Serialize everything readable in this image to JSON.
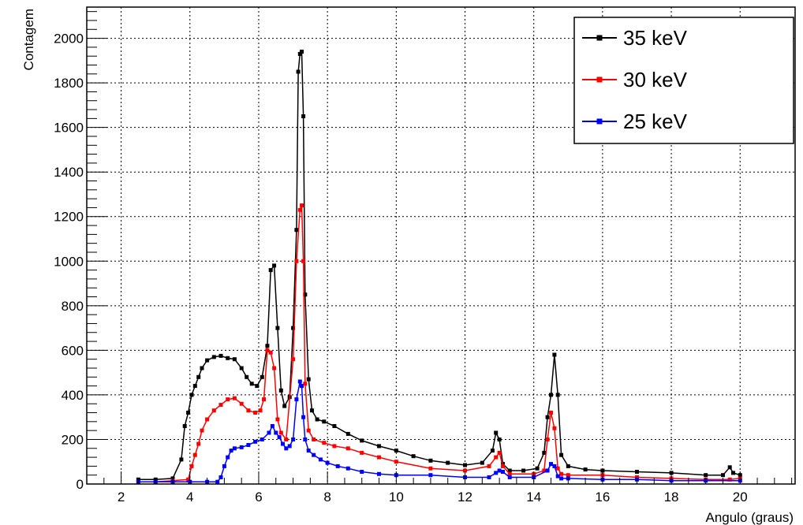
{
  "chart_data": {
    "type": "line",
    "xlabel": "Angulo (graus)",
    "ylabel": "Contagem",
    "xlim": [
      1,
      21.6
    ],
    "ylim": [
      0,
      2140
    ],
    "xticks": [
      2,
      4,
      6,
      8,
      10,
      12,
      14,
      16,
      18,
      20
    ],
    "yticks": [
      0,
      200,
      400,
      600,
      800,
      1000,
      1200,
      1400,
      1600,
      1800,
      2000
    ],
    "grid": true,
    "legend": "top-right",
    "series": [
      {
        "name": "35 keV",
        "color": "#000000",
        "x": [
          2.5,
          3.0,
          3.5,
          3.75,
          3.85,
          3.95,
          4.05,
          4.15,
          4.25,
          4.35,
          4.5,
          4.7,
          4.9,
          5.1,
          5.3,
          5.5,
          5.65,
          5.8,
          5.95,
          6.1,
          6.25,
          6.35,
          6.45,
          6.55,
          6.65,
          6.75,
          6.9,
          7.0,
          7.1,
          7.15,
          7.2,
          7.25,
          7.3,
          7.35,
          7.45,
          7.55,
          7.7,
          7.9,
          8.2,
          8.6,
          9.0,
          9.5,
          10.0,
          10.5,
          11.0,
          11.5,
          12.0,
          12.5,
          12.8,
          12.9,
          13.0,
          13.1,
          13.3,
          13.7,
          14.1,
          14.3,
          14.4,
          14.5,
          14.6,
          14.7,
          14.8,
          15.0,
          15.5,
          16.0,
          17.0,
          18.0,
          19.0,
          19.5,
          19.7,
          19.8,
          20.0
        ],
        "values": [
          20,
          20,
          25,
          110,
          260,
          320,
          400,
          440,
          480,
          520,
          555,
          570,
          575,
          565,
          560,
          520,
          480,
          450,
          440,
          480,
          620,
          960,
          980,
          700,
          420,
          350,
          390,
          700,
          1140,
          1850,
          1930,
          1940,
          1650,
          850,
          470,
          330,
          290,
          280,
          260,
          225,
          195,
          170,
          150,
          125,
          105,
          95,
          85,
          95,
          150,
          230,
          200,
          90,
          60,
          60,
          70,
          140,
          300,
          400,
          580,
          400,
          130,
          80,
          65,
          60,
          55,
          50,
          40,
          40,
          75,
          50,
          40
        ]
      },
      {
        "name": "30 keV",
        "color": "#ff0000",
        "x": [
          2.5,
          3.0,
          3.5,
          3.95,
          4.05,
          4.15,
          4.25,
          4.35,
          4.5,
          4.7,
          4.9,
          5.1,
          5.3,
          5.5,
          5.7,
          5.9,
          6.05,
          6.15,
          6.25,
          6.35,
          6.45,
          6.55,
          6.65,
          6.8,
          7.0,
          7.1,
          7.2,
          7.25,
          7.3,
          7.35,
          7.45,
          7.6,
          7.9,
          8.2,
          8.6,
          9.0,
          9.5,
          10.0,
          11.0,
          12.0,
          12.7,
          12.9,
          13.0,
          13.1,
          13.3,
          14.0,
          14.3,
          14.4,
          14.5,
          14.6,
          14.7,
          14.8,
          15.0,
          16.0,
          17.0,
          18.0,
          19.0,
          19.7,
          20.0
        ],
        "values": [
          10,
          10,
          15,
          20,
          80,
          130,
          180,
          240,
          290,
          330,
          355,
          380,
          385,
          360,
          330,
          320,
          330,
          380,
          600,
          590,
          520,
          290,
          230,
          200,
          560,
          1000,
          1230,
          1250,
          1000,
          450,
          240,
          200,
          185,
          170,
          160,
          140,
          120,
          100,
          70,
          60,
          80,
          120,
          140,
          80,
          45,
          45,
          60,
          200,
          320,
          250,
          70,
          45,
          40,
          40,
          30,
          25,
          20,
          20,
          25
        ]
      },
      {
        "name": "25 keV",
        "color": "#0000ff",
        "x": [
          2.5,
          3.0,
          3.5,
          4.0,
          4.5,
          4.8,
          4.9,
          5.0,
          5.1,
          5.2,
          5.3,
          5.5,
          5.7,
          5.9,
          6.1,
          6.3,
          6.4,
          6.5,
          6.6,
          6.7,
          6.8,
          6.9,
          7.0,
          7.1,
          7.2,
          7.25,
          7.3,
          7.35,
          7.45,
          7.6,
          7.8,
          8.0,
          8.3,
          8.6,
          9.0,
          9.5,
          10.0,
          11.0,
          12.0,
          12.7,
          12.9,
          13.0,
          13.1,
          13.3,
          14.0,
          14.4,
          14.5,
          14.6,
          14.7,
          14.8,
          15.0,
          16.0,
          17.0,
          18.0,
          19.0,
          20.0
        ],
        "values": [
          10,
          10,
          10,
          10,
          10,
          10,
          30,
          80,
          120,
          150,
          160,
          165,
          175,
          190,
          200,
          230,
          260,
          230,
          210,
          180,
          160,
          170,
          200,
          380,
          460,
          440,
          300,
          200,
          150,
          130,
          110,
          95,
          80,
          70,
          55,
          45,
          40,
          40,
          30,
          30,
          50,
          60,
          55,
          30,
          30,
          60,
          90,
          80,
          35,
          25,
          25,
          20,
          20,
          15,
          15,
          15
        ]
      }
    ]
  }
}
